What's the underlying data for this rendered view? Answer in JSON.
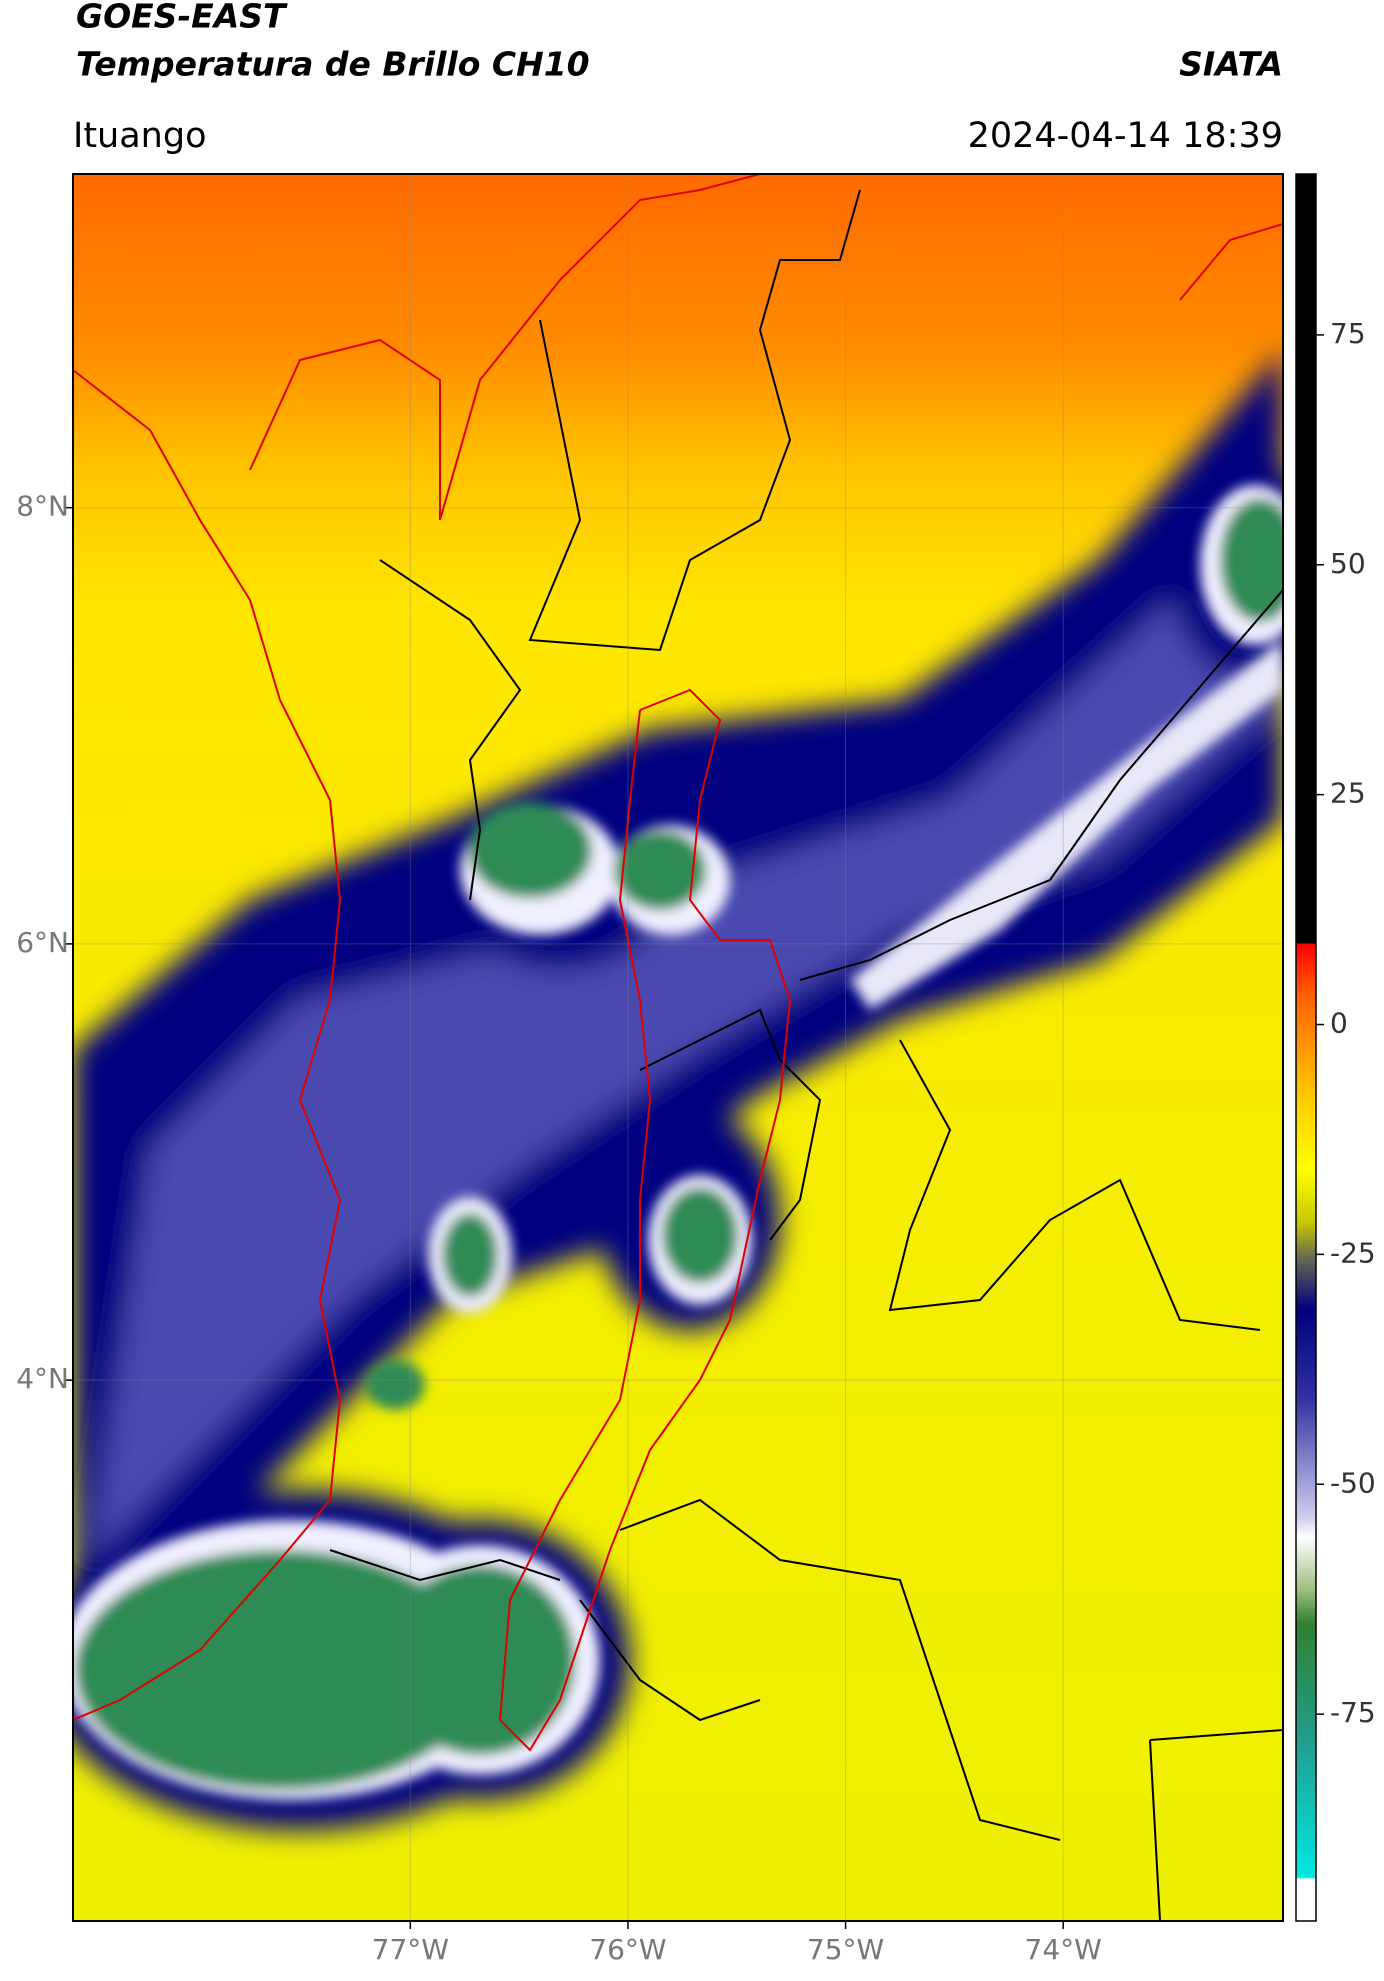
{
  "header": {
    "title_line1": "GOES-EAST",
    "title_line2": "Temperatura de Brillo CH10",
    "source": "SIATA",
    "location": "Ituango",
    "datetime": "2024-04-14 18:39"
  },
  "map": {
    "xlim": [
      -78.55,
      -72.99
    ],
    "ylim": [
      1.52,
      9.53
    ],
    "xticks": [
      {
        "value": -77,
        "label": "77°W"
      },
      {
        "value": -76,
        "label": "76°W"
      },
      {
        "value": -75,
        "label": "75°W"
      },
      {
        "value": -74,
        "label": "74°W"
      }
    ],
    "yticks": [
      {
        "value": 8,
        "label": "8°N"
      },
      {
        "value": 6,
        "label": "6°N"
      },
      {
        "value": 4,
        "label": "4°N"
      }
    ],
    "grid": true
  },
  "colorbar": {
    "clim": [
      -97.5,
      92.5
    ],
    "ticks": [
      75,
      50,
      25,
      0,
      -25,
      -50,
      -75
    ]
  }
}
